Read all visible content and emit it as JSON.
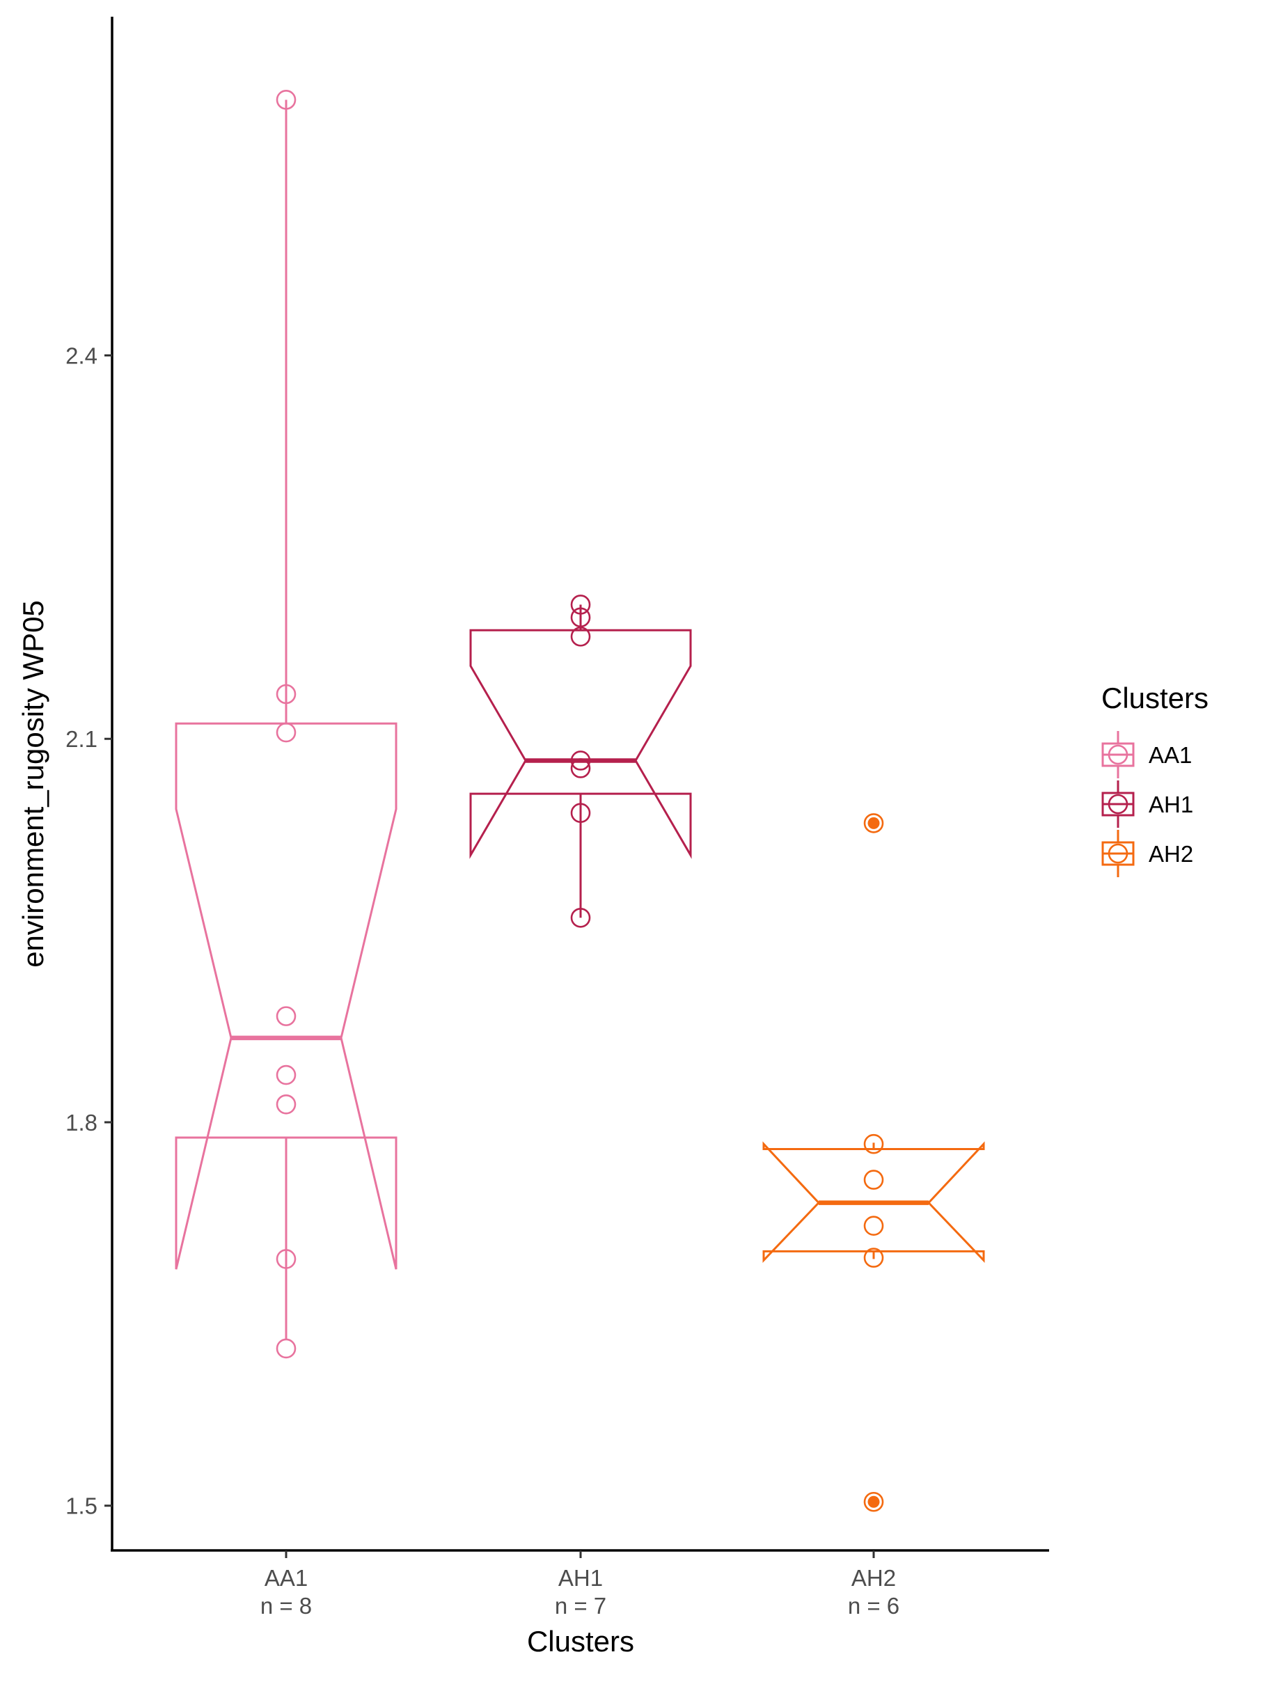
{
  "chart_data": {
    "type": "box",
    "subtype": "notched boxplot with jittered points",
    "xlabel": "Clusters",
    "ylabel": "environment_rugosity WP05",
    "ylim": [
      1.465,
      2.665
    ],
    "y_ticks": [
      "1.5",
      "1.8",
      "2.1",
      "2.4"
    ],
    "y_tick_values": [
      1.5,
      1.8,
      2.1,
      2.4
    ],
    "grid": false,
    "legend": {
      "title": "Clusters",
      "position": "right"
    },
    "groups": [
      {
        "name": "AA1",
        "count_label": "n = 8",
        "color": "#E8739E",
        "q1": 1.788,
        "median": 1.866,
        "q3": 2.112,
        "notch_low": 1.685,
        "notch_high": 2.045,
        "whisker_low": 1.63,
        "whisker_high": 2.6,
        "points": [
          2.6,
          2.135,
          2.105,
          1.883,
          1.837,
          1.814,
          1.693,
          1.623
        ],
        "outliers": []
      },
      {
        "name": "AH1",
        "count_label": "n = 7",
        "color": "#B5204D",
        "q1": 2.057,
        "median": 2.083,
        "q3": 2.185,
        "notch_low": 2.009,
        "notch_high": 2.157,
        "whisker_low": 1.96,
        "whisker_high": 2.205,
        "points": [
          2.205,
          2.195,
          2.18,
          2.083,
          2.077,
          2.042,
          1.96
        ],
        "outliers": []
      },
      {
        "name": "AH2",
        "count_label": "n = 6",
        "color": "#F46A10",
        "q1": 1.699,
        "median": 1.737,
        "q3": 1.779,
        "notch_low": 1.692,
        "notch_high": 1.783,
        "whisker_low": 1.693,
        "whisker_high": 1.784,
        "points": [
          2.034,
          1.783,
          1.755,
          1.719,
          1.694,
          1.503
        ],
        "outliers": [
          2.034,
          1.503
        ]
      }
    ]
  }
}
